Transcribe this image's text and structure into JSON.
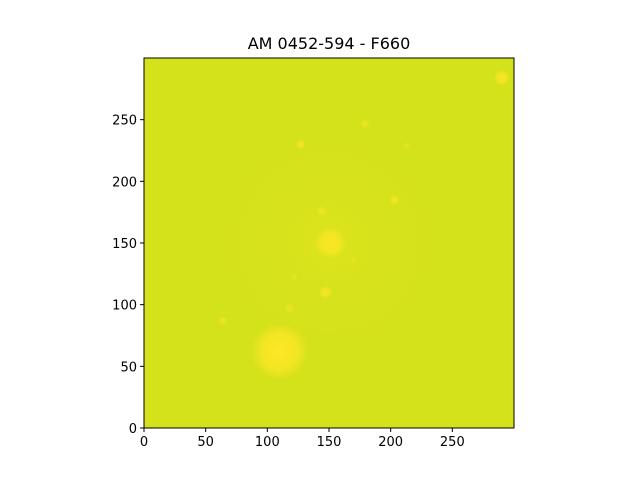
{
  "figure": {
    "title": "AM 0452-594 - F660"
  },
  "image_panel": {
    "colormap_base": "#d4e21b",
    "colormap_bright": "#fde725",
    "x_ticks": [
      "0",
      "50",
      "100",
      "150",
      "200",
      "250"
    ],
    "y_ticks": [
      "0",
      "50",
      "100",
      "150",
      "200",
      "250"
    ]
  },
  "chart_data": {
    "type": "heatmap",
    "title": "AM 0452-594 - F660",
    "xlabel": "",
    "ylabel": "",
    "xlim": [
      0,
      300
    ],
    "ylim": [
      0,
      300
    ],
    "x_ticks": [
      0,
      50,
      100,
      150,
      200,
      250
    ],
    "y_ticks": [
      0,
      50,
      100,
      150,
      200,
      250
    ],
    "sources": [
      {
        "x": 110,
        "y": 62,
        "r": 18,
        "peak": 1.0
      },
      {
        "x": 151,
        "y": 150,
        "r": 10,
        "peak": 0.9
      },
      {
        "x": 147,
        "y": 110,
        "r": 4,
        "peak": 0.8
      },
      {
        "x": 290,
        "y": 284,
        "r": 5,
        "peak": 0.9
      },
      {
        "x": 203,
        "y": 185,
        "r": 3,
        "peak": 0.7
      },
      {
        "x": 127,
        "y": 230,
        "r": 3,
        "peak": 0.7
      },
      {
        "x": 179,
        "y": 247,
        "r": 3,
        "peak": 0.6
      },
      {
        "x": 144,
        "y": 176,
        "r": 3,
        "peak": 0.6
      },
      {
        "x": 64,
        "y": 87,
        "r": 3,
        "peak": 0.6
      },
      {
        "x": 118,
        "y": 97,
        "r": 3,
        "peak": 0.5
      },
      {
        "x": 213,
        "y": 229,
        "r": 2,
        "peak": 0.5
      },
      {
        "x": 170,
        "y": 136,
        "r": 2,
        "peak": 0.4
      },
      {
        "x": 122,
        "y": 122,
        "r": 2,
        "peak": 0.4
      }
    ],
    "diffuse_halo": {
      "x": 150,
      "y": 150,
      "r": 90,
      "peak": 0.25
    }
  }
}
